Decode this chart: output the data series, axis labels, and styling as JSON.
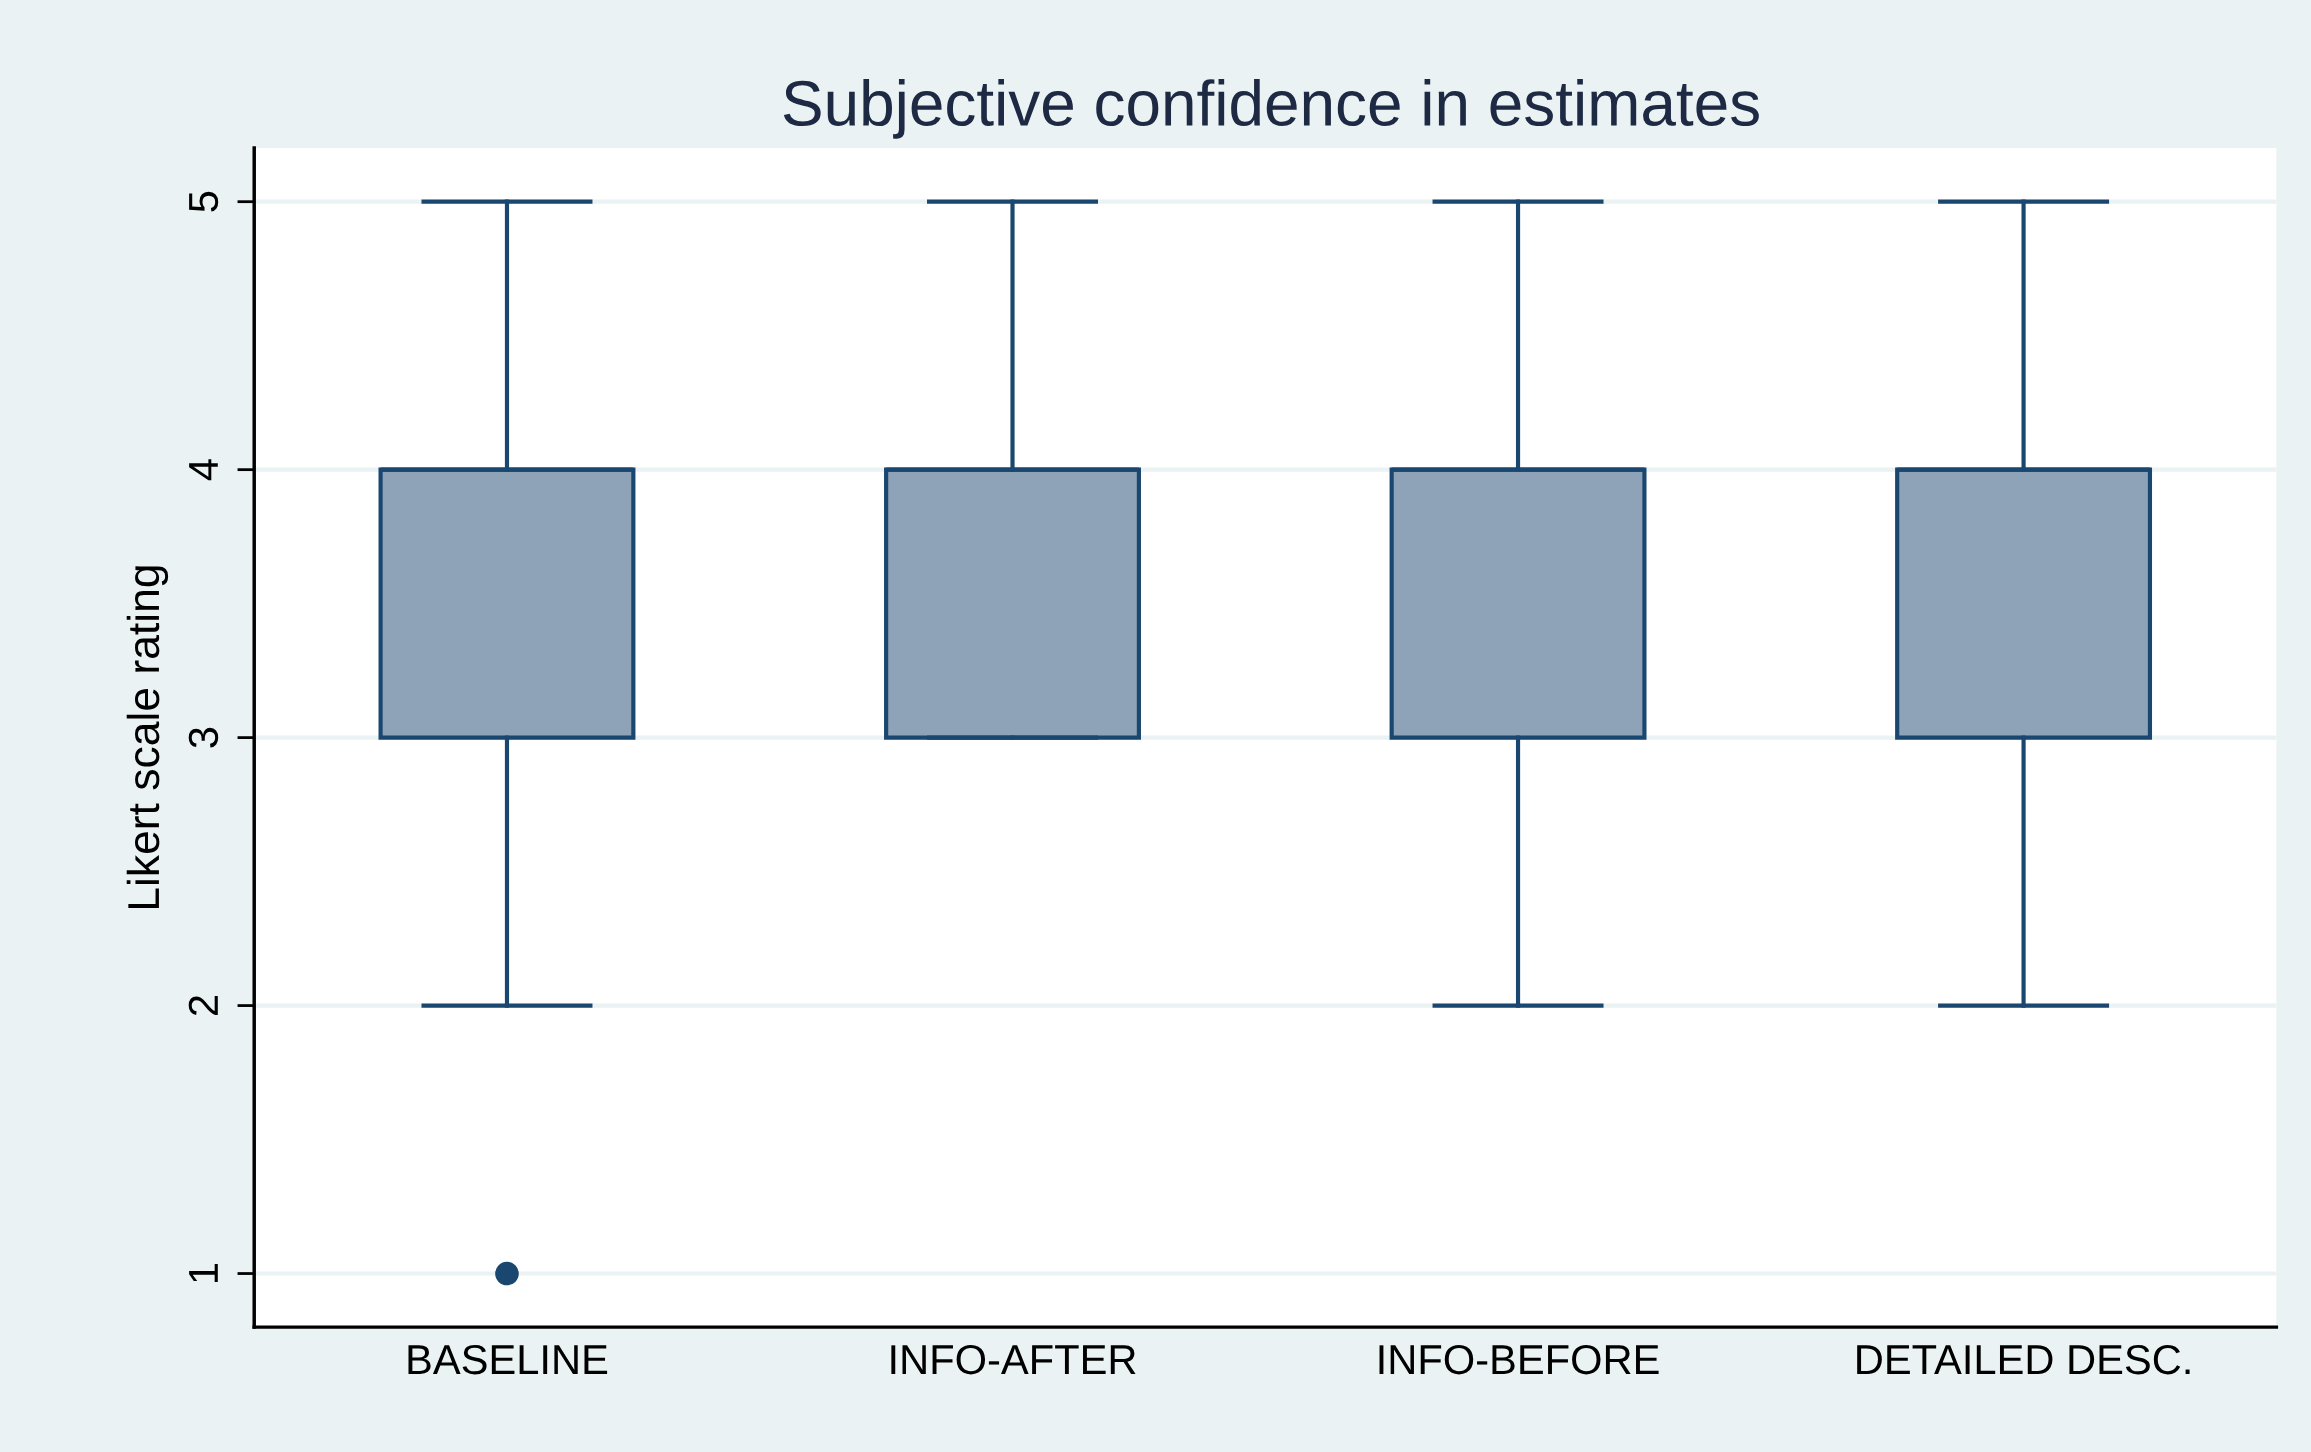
{
  "chart_data": {
    "type": "box",
    "title": "Subjective confidence in estimates",
    "ylabel": "Likert scale rating",
    "categories": [
      "BASELINE",
      "INFO-AFTER",
      "INFO-BEFORE",
      "DETAILED DESC."
    ],
    "series": [
      {
        "color": "#8ea3b7",
        "boxes": [
          {
            "low": 2,
            "q1": 3,
            "median": 4,
            "q3": 4,
            "high": 5,
            "outliers": [
              1
            ]
          },
          {
            "low": 3,
            "q1": 3,
            "median": 4,
            "q3": 4,
            "high": 5
          },
          {
            "low": 2,
            "q1": 3,
            "median": 4,
            "q3": 4,
            "high": 5
          },
          {
            "low": 2,
            "q1": 3,
            "median": 4,
            "q3": 4,
            "high": 5
          }
        ]
      }
    ],
    "ylim": [
      0.8,
      5.2
    ],
    "yticks": [
      1,
      2,
      3,
      4,
      5
    ],
    "grid": "y",
    "legend": false
  }
}
